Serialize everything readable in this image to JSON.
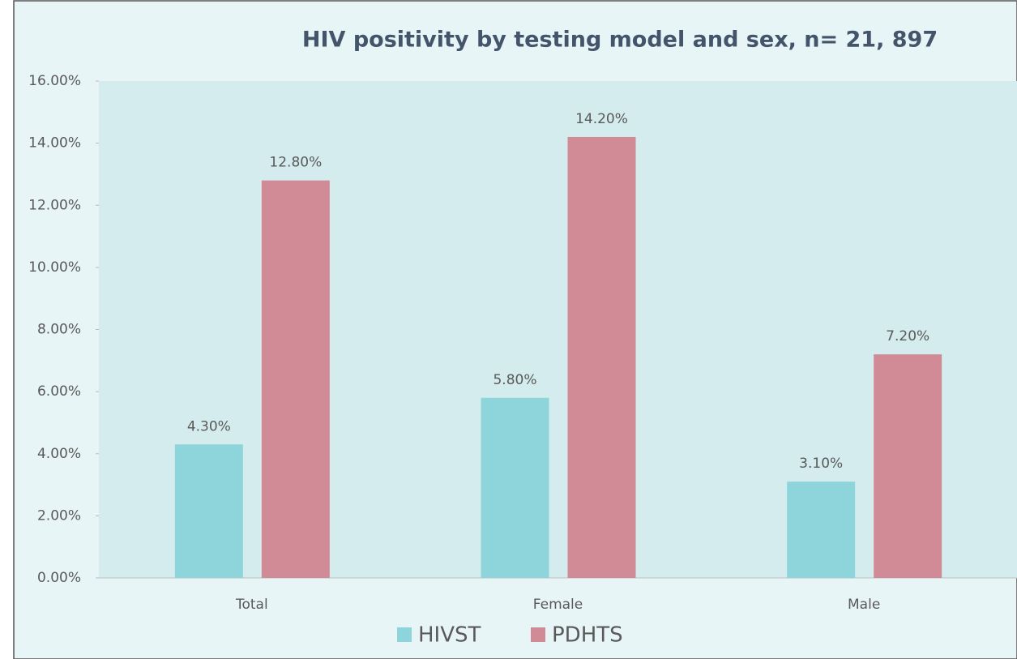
{
  "chart_data": {
    "type": "bar",
    "title": "HIV positivity by testing model and sex, n= 21, 897",
    "categories": [
      "Total",
      "Female",
      "Male"
    ],
    "series": [
      {
        "name": "HIVST",
        "color": "#8dd4db",
        "values": [
          4.3,
          5.8,
          3.1
        ],
        "value_labels": [
          "4.30%",
          "5.80%",
          "3.10%"
        ]
      },
      {
        "name": "PDHTS",
        "color": "#d18b96",
        "values": [
          12.8,
          14.2,
          7.2
        ],
        "value_labels": [
          "12.80%",
          "14.20%",
          "7.20%"
        ]
      }
    ],
    "ylim": [
      0,
      16
    ],
    "yticks": [
      {
        "value": 0,
        "label": "0.00%"
      },
      {
        "value": 2,
        "label": "2.00%"
      },
      {
        "value": 4,
        "label": "4.00%"
      },
      {
        "value": 6,
        "label": "6.00%"
      },
      {
        "value": 8,
        "label": "8.00%"
      },
      {
        "value": 10,
        "label": "10.00%"
      },
      {
        "value": 12,
        "label": "12.00%"
      },
      {
        "value": 14,
        "label": "14.00%"
      },
      {
        "value": 16,
        "label": "16.00%"
      }
    ],
    "legend": "bottom"
  }
}
